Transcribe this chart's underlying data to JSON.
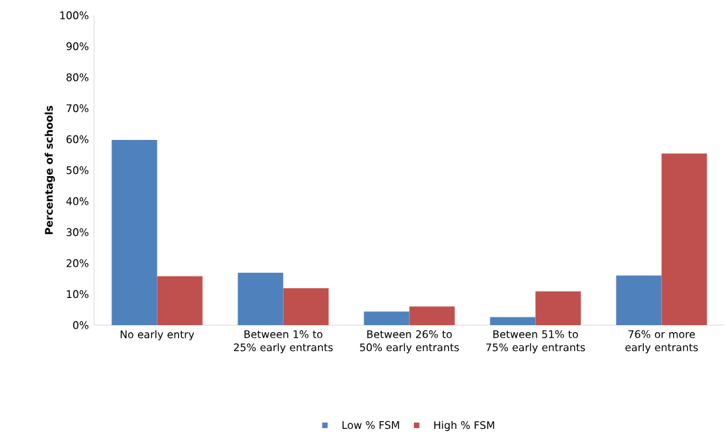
{
  "chart_data": {
    "type": "bar",
    "ylabel": "Percentage of schools",
    "categories": [
      "No early entry",
      "Between 1% to 25% early entrants",
      "Between 26% to 50% early entrants",
      "Between 51% to 75% early entrants",
      "76% or more early entrants"
    ],
    "series": [
      {
        "name": "Low % FSM",
        "color": "#4f81bd",
        "values": [
          59.8,
          16.9,
          4.4,
          2.6,
          16.0
        ]
      },
      {
        "name": "High % FSM",
        "color": "#c0504d",
        "values": [
          15.8,
          11.9,
          6.0,
          10.9,
          55.4
        ]
      }
    ],
    "ylim": [
      0,
      100
    ],
    "yticks": [
      {
        "value": 0,
        "label": "0%"
      },
      {
        "value": 10,
        "label": "10%"
      },
      {
        "value": 20,
        "label": "20%"
      },
      {
        "value": 30,
        "label": "30%"
      },
      {
        "value": 40,
        "label": "40%"
      },
      {
        "value": 50,
        "label": "50%"
      },
      {
        "value": 60,
        "label": "60%"
      },
      {
        "value": 70,
        "label": "70%"
      },
      {
        "value": 80,
        "label": "80%"
      },
      {
        "value": 90,
        "label": "90%"
      },
      {
        "value": 100,
        "label": "100%"
      }
    ],
    "grid": false,
    "legend": "bottom"
  }
}
